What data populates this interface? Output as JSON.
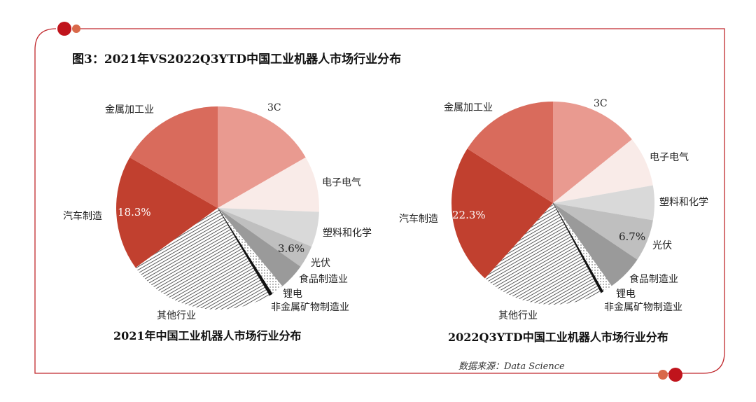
{
  "title": "图3：2021年VS2022Q3YTD中国工业机器人市场行业分布",
  "source": "数据来源：Data Science",
  "colors": {
    "frame": "#c0282d",
    "dot_big": "#c0141c",
    "dot_small": "#d9694a"
  },
  "chart_data": [
    {
      "type": "pie",
      "title": "2021年中国工业机器人市场行业分布",
      "unit": "%",
      "categories": [
        "3C",
        "电子电气",
        "塑料和化学",
        "光伏",
        "食品制造业",
        "非金属矿物制造业",
        "锂电",
        "其他行业",
        "汽车制造",
        "金属加工业"
      ],
      "values": [
        16.7,
        8.9,
        5.6,
        3.6,
        4.2,
        2.0,
        0.5,
        23.5,
        18.3,
        16.7
      ],
      "data_labels": {
        "光伏": "3.6%",
        "汽车制造": "18.3%"
      },
      "colors": [
        "#e99a90",
        "#f9ebe8",
        "#d9d9d9",
        "#bfbfbf",
        "#9a9a9a",
        "dots",
        "#111111",
        "hatch",
        "#c1402f",
        "#d96b5c"
      ]
    },
    {
      "type": "pie",
      "title": "2022Q3YTD中国工业机器人市场行业分布",
      "unit": "%",
      "categories": [
        "3C",
        "电子电气",
        "塑料和化学",
        "光伏",
        "食品制造业",
        "非金属矿物制造业",
        "锂电",
        "其他行业",
        "汽车制造",
        "金属加工业"
      ],
      "values": [
        14.2,
        8.0,
        5.5,
        6.7,
        5.8,
        1.6,
        0.4,
        19.5,
        22.3,
        16.0
      ],
      "data_labels": {
        "光伏": "6.7%",
        "汽车制造": "22.3%"
      },
      "colors": [
        "#e99a90",
        "#f9ebe8",
        "#d9d9d9",
        "#bfbfbf",
        "#9a9a9a",
        "dots",
        "#111111",
        "hatch",
        "#c1402f",
        "#d96b5c"
      ]
    }
  ]
}
